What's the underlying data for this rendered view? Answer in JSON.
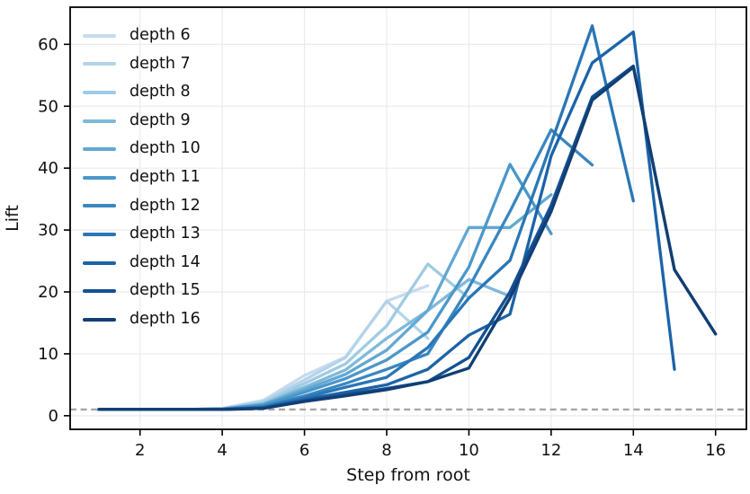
{
  "chart_data": {
    "type": "line",
    "title": "",
    "xlabel": "Step from root",
    "ylabel": "Lift",
    "xlim": [
      0.3,
      16.75
    ],
    "ylim": [
      -2.2,
      66
    ],
    "x_ticks": [
      2,
      4,
      6,
      8,
      10,
      12,
      14,
      16
    ],
    "y_ticks": [
      0,
      10,
      20,
      30,
      40,
      50,
      60
    ],
    "grid": true,
    "legend_position": "upper left",
    "baseline": {
      "y": 1,
      "style": "dashed",
      "color": "#a6a6a6"
    },
    "series": [
      {
        "name": "depth 6",
        "color": "#c6dbef",
        "x": [
          1,
          2,
          3,
          4,
          5,
          6,
          7,
          8,
          9
        ],
        "values": [
          1.0,
          1.0,
          1.0,
          1.2,
          2.5,
          6.5,
          9.5,
          18.5,
          21.0
        ]
      },
      {
        "name": "depth 7",
        "color": "#b4d3e9",
        "x": [
          1,
          2,
          3,
          4,
          5,
          6,
          7,
          8,
          9
        ],
        "values": [
          1.0,
          1.0,
          1.0,
          1.1,
          2.3,
          5.8,
          9.4,
          18.5,
          12.5
        ]
      },
      {
        "name": "depth 8",
        "color": "#a0cbe2",
        "x": [
          1,
          2,
          3,
          4,
          5,
          6,
          7,
          8,
          9,
          10
        ],
        "values": [
          1.0,
          1.0,
          1.0,
          1.1,
          2.1,
          5.2,
          8.4,
          14.5,
          24.5,
          19.0
        ]
      },
      {
        "name": "depth 9",
        "color": "#7fb9da",
        "x": [
          1,
          2,
          3,
          4,
          5,
          6,
          7,
          8,
          9,
          10,
          11
        ],
        "values": [
          1.0,
          1.0,
          1.0,
          1.1,
          1.9,
          4.6,
          7.4,
          12.5,
          17.0,
          22.0,
          19.3
        ]
      },
      {
        "name": "depth 10",
        "color": "#62a8d2",
        "x": [
          1,
          2,
          3,
          4,
          5,
          6,
          7,
          8,
          9,
          10,
          11,
          12
        ],
        "values": [
          1.0,
          1.0,
          1.0,
          1.1,
          1.8,
          4.2,
          6.7,
          10.6,
          17.0,
          30.4,
          30.4,
          35.7
        ]
      },
      {
        "name": "depth 11",
        "color": "#4b97c9",
        "x": [
          1,
          2,
          3,
          4,
          5,
          6,
          7,
          8,
          9,
          10,
          11,
          12
        ],
        "values": [
          1.0,
          1.0,
          1.0,
          1.1,
          1.7,
          3.8,
          6.0,
          9.0,
          13.5,
          24.0,
          40.6,
          29.4
        ]
      },
      {
        "name": "depth 12",
        "color": "#3987c0",
        "x": [
          1,
          2,
          3,
          4,
          5,
          6,
          7,
          8,
          9,
          10,
          11,
          12,
          13
        ],
        "values": [
          1.0,
          1.0,
          1.0,
          1.0,
          1.5,
          3.2,
          5.2,
          7.5,
          10.0,
          20.7,
          33.0,
          46.2,
          40.5
        ]
      },
      {
        "name": "depth 13",
        "color": "#2a76b6",
        "x": [
          1,
          2,
          3,
          4,
          5,
          6,
          7,
          8,
          9,
          10,
          11,
          12,
          13,
          14
        ],
        "values": [
          1.0,
          1.0,
          1.0,
          1.0,
          1.4,
          2.9,
          4.6,
          6.2,
          11.0,
          19.0,
          25.1,
          44.0,
          63.0,
          34.7
        ]
      },
      {
        "name": "depth 14",
        "color": "#1c63a8",
        "x": [
          1,
          2,
          3,
          4,
          5,
          6,
          7,
          8,
          9,
          10,
          11,
          12,
          13,
          14,
          15
        ],
        "values": [
          1.0,
          1.0,
          1.0,
          1.0,
          1.3,
          2.6,
          3.8,
          5.0,
          7.5,
          13.0,
          16.4,
          42.0,
          57.0,
          62.0,
          7.5
        ]
      },
      {
        "name": "depth 15",
        "color": "#135093",
        "x": [
          1,
          2,
          3,
          4,
          5,
          6,
          7,
          8,
          9,
          10,
          11,
          12,
          13,
          14,
          15,
          16
        ],
        "values": [
          1.0,
          1.0,
          1.0,
          1.0,
          1.2,
          2.4,
          3.4,
          4.4,
          5.5,
          9.4,
          20.0,
          34.0,
          51.5,
          56.5,
          23.6,
          13.2
        ]
      },
      {
        "name": "depth 16",
        "color": "#123e73",
        "x": [
          1,
          2,
          3,
          4,
          5,
          6,
          7,
          8,
          9,
          10,
          11,
          12,
          13,
          14,
          15,
          16
        ],
        "values": [
          1.0,
          1.0,
          1.0,
          1.0,
          1.2,
          2.3,
          3.2,
          4.2,
          5.5,
          7.7,
          19.0,
          33.0,
          51.0,
          56.3,
          23.6,
          13.2
        ]
      }
    ]
  },
  "styles": {
    "grid_color": "#ebebeb",
    "spine_color": "#000000",
    "tick_color": "#000000",
    "background": "#ffffff"
  }
}
